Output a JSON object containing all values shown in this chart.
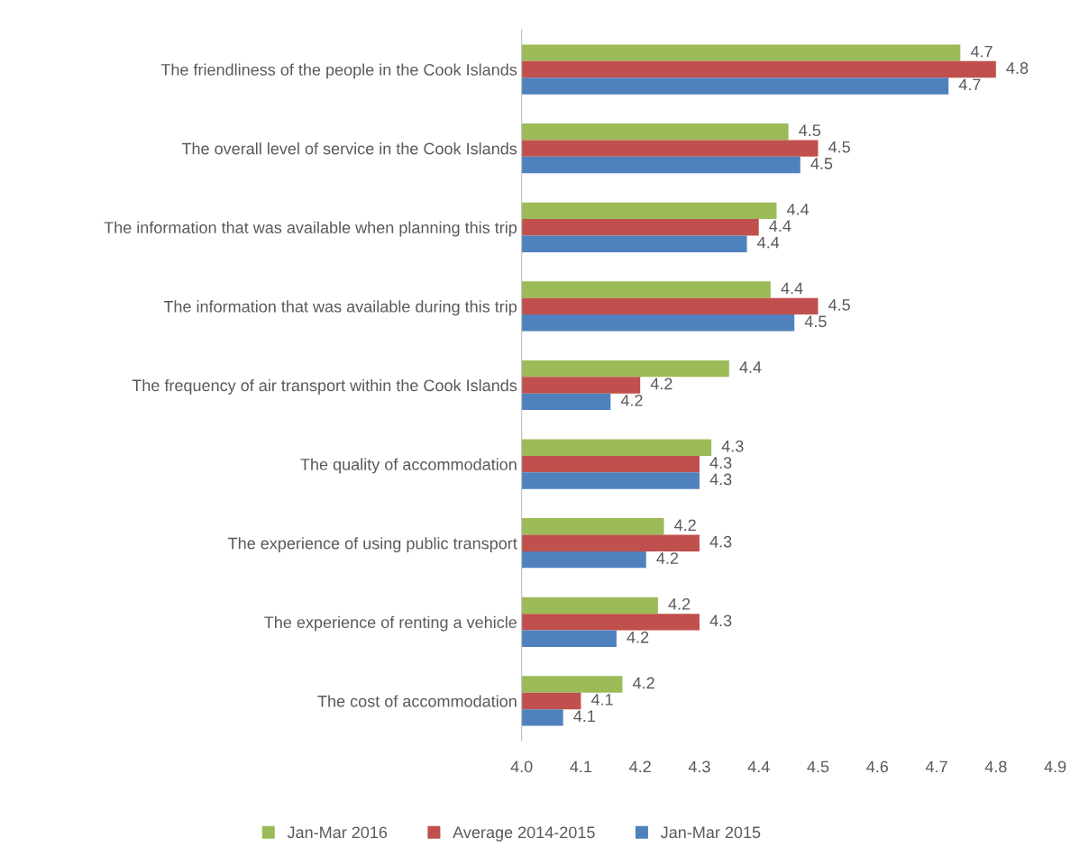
{
  "chart_data": {
    "type": "bar",
    "orientation": "horizontal",
    "categories": [
      "The friendliness of the people in the Cook Islands",
      "The overall level of service in the Cook Islands",
      "The information that was available when planning this trip",
      "The information that was available during this trip",
      "The frequency of air transport within the Cook Islands",
      "The quality of accommodation",
      "The experience of using public transport",
      "The experience of renting a vehicle",
      "The cost of accommodation"
    ],
    "series": [
      {
        "name": "Jan-Mar 2016",
        "color": "#9bbb59",
        "values": [
          4.74,
          4.45,
          4.43,
          4.42,
          4.35,
          4.32,
          4.24,
          4.23,
          4.17
        ],
        "value_labels": [
          "4.7",
          "4.5",
          "4.4",
          "4.4",
          "4.4",
          "4.3",
          "4.2",
          "4.2",
          "4.2"
        ]
      },
      {
        "name": "Average 2014-2015",
        "color": "#c0504d",
        "values": [
          4.8,
          4.5,
          4.4,
          4.5,
          4.2,
          4.3,
          4.3,
          4.3,
          4.1
        ],
        "value_labels": [
          "4.8",
          "4.5",
          "4.4",
          "4.5",
          "4.2",
          "4.3",
          "4.3",
          "4.3",
          "4.1"
        ]
      },
      {
        "name": "Jan-Mar 2015",
        "color": "#4f81bd",
        "values": [
          4.72,
          4.47,
          4.38,
          4.46,
          4.15,
          4.3,
          4.21,
          4.16,
          4.07
        ],
        "value_labels": [
          "4.7",
          "4.5",
          "4.4",
          "4.5",
          "4.2",
          "4.3",
          "4.2",
          "4.2",
          "4.1"
        ]
      }
    ],
    "xlim": [
      4.0,
      4.9
    ],
    "xticks": [
      {
        "value": 4.0,
        "label": "4.0"
      },
      {
        "value": 4.1,
        "label": "4.1"
      },
      {
        "value": 4.2,
        "label": "4.2"
      },
      {
        "value": 4.3,
        "label": "4.3"
      },
      {
        "value": 4.4,
        "label": "4.4"
      },
      {
        "value": 4.5,
        "label": "4.5"
      },
      {
        "value": 4.6,
        "label": "4.6"
      },
      {
        "value": 4.7,
        "label": "4.7"
      },
      {
        "value": 4.8,
        "label": "4.8"
      },
      {
        "value": 4.9,
        "label": "4.9"
      }
    ],
    "grid": false,
    "legend": "bottom"
  }
}
